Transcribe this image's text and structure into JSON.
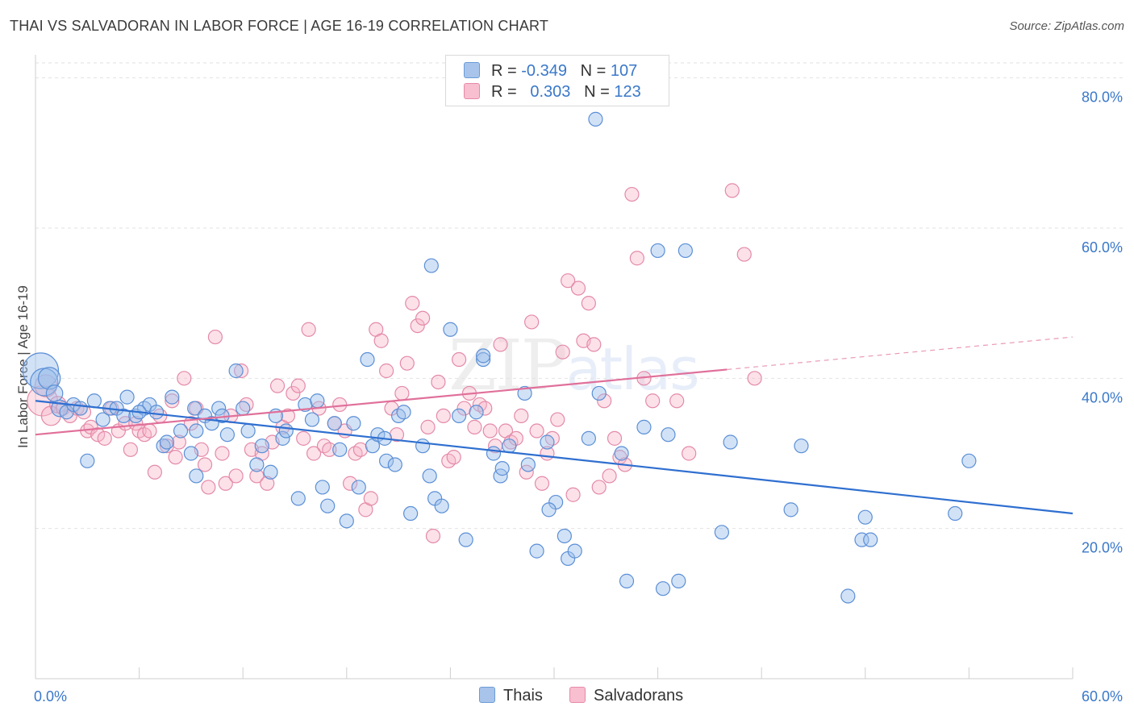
{
  "title": "THAI VS SALVADORAN IN LABOR FORCE | AGE 16-19 CORRELATION CHART",
  "source": "Source: ZipAtlas.com",
  "watermark": {
    "zip": "ZIP",
    "atlas": "atlas"
  },
  "legend": {
    "r_label": "R =",
    "n_label": "N =",
    "rows": [
      {
        "r": "-0.349",
        "n": "107",
        "color": "#a8c4ea",
        "border": "#6b9bd8"
      },
      {
        "r": "0.303",
        "n": "123",
        "color": "#f7bfd0",
        "border": "#e88aa8"
      }
    ]
  },
  "bottom_legend": [
    {
      "label": "Thais",
      "color": "#a8c4ea",
      "border": "#6b9bd8"
    },
    {
      "label": "Salvadorans",
      "color": "#f7bfd0",
      "border": "#e88aa8"
    }
  ],
  "colors": {
    "thai_fill": "rgba(155,190,235,0.45)",
    "thai_stroke": "#5b8fd6",
    "thai_line": "#2f6fd0",
    "salv_fill": "rgba(247,180,200,0.40)",
    "salv_stroke": "#e48aa8",
    "salv_line": "#e0709a",
    "tick_label": "#3a78c9",
    "grid": "#e2e2e2"
  },
  "chart_data": {
    "type": "scatter",
    "title": "THAI VS SALVADORAN IN LABOR FORCE | AGE 16-19 CORRELATION CHART",
    "xlabel": "",
    "ylabel": "In Labor Force | Age 16-19",
    "xlim": [
      0,
      60
    ],
    "ylim": [
      0,
      82
    ],
    "x_tick_labels": [
      "0.0%",
      "60.0%"
    ],
    "y_ticks": [
      20,
      40,
      60,
      80
    ],
    "y_tick_labels": [
      "20.0%",
      "40.0%",
      "60.0%",
      "80.0%"
    ],
    "grid": true,
    "legend_position": "top-center",
    "series": [
      {
        "name": "Thais",
        "r": -0.349,
        "n": 107,
        "trend": {
          "x0": 0,
          "y0": 37.0,
          "x1": 60,
          "y1": 22.0,
          "dashed_from": null
        },
        "points": [
          [
            0.3,
            41,
            2.6
          ],
          [
            0.5,
            39.5,
            2
          ],
          [
            0.8,
            40,
            1.6
          ],
          [
            1.1,
            38,
            1.2
          ],
          [
            1.4,
            36,
            1.2
          ],
          [
            1.8,
            35.5,
            1
          ],
          [
            2.2,
            36.5,
            1
          ],
          [
            2.6,
            36,
            1
          ],
          [
            3.0,
            29,
            1
          ],
          [
            3.4,
            37,
            1
          ],
          [
            3.9,
            34.5,
            1
          ],
          [
            4.3,
            36,
            1
          ],
          [
            4.7,
            36,
            1
          ],
          [
            5.1,
            35,
            1
          ],
          [
            5.3,
            37.5,
            1
          ],
          [
            5.8,
            35,
            1
          ],
          [
            6.3,
            36,
            1
          ],
          [
            6.6,
            36.5,
            1
          ],
          [
            7.0,
            35.5,
            1
          ],
          [
            7.4,
            31,
            1
          ],
          [
            7.6,
            31.5,
            1
          ],
          [
            7.9,
            37.5,
            1
          ],
          [
            8.4,
            33,
            1
          ],
          [
            9.0,
            30,
            1
          ],
          [
            9.2,
            36,
            1
          ],
          [
            9.3,
            27,
            1
          ],
          [
            9.8,
            35,
            1
          ],
          [
            10.2,
            34,
            1
          ],
          [
            10.6,
            36,
            1
          ],
          [
            10.8,
            35,
            1
          ],
          [
            11.1,
            32.5,
            1
          ],
          [
            11.6,
            41,
            1
          ],
          [
            12.0,
            36,
            1
          ],
          [
            12.3,
            33,
            1
          ],
          [
            12.8,
            28.5,
            1
          ],
          [
            13.1,
            31,
            1
          ],
          [
            13.6,
            27.5,
            1
          ],
          [
            13.9,
            35,
            1
          ],
          [
            14.3,
            32,
            1
          ],
          [
            14.5,
            33,
            1
          ],
          [
            15.6,
            36.5,
            1
          ],
          [
            16.0,
            34.5,
            1
          ],
          [
            16.3,
            37,
            1
          ],
          [
            16.6,
            25.5,
            1
          ],
          [
            16.9,
            23,
            1
          ],
          [
            17.3,
            34,
            1
          ],
          [
            17.6,
            30.5,
            1
          ],
          [
            18.0,
            21,
            1
          ],
          [
            18.4,
            34,
            1
          ],
          [
            18.7,
            25.5,
            1
          ],
          [
            19.2,
            42.5,
            1
          ],
          [
            19.5,
            31,
            1
          ],
          [
            19.8,
            32.5,
            1
          ],
          [
            20.3,
            29,
            1
          ],
          [
            20.8,
            28.5,
            1
          ],
          [
            21.0,
            35,
            1
          ],
          [
            21.3,
            35.5,
            1
          ],
          [
            21.7,
            22,
            1
          ],
          [
            22.4,
            31,
            1
          ],
          [
            22.8,
            27,
            1
          ],
          [
            23.1,
            24,
            1
          ],
          [
            23.5,
            23,
            1
          ],
          [
            24.0,
            46.5,
            1
          ],
          [
            24.5,
            35,
            1
          ],
          [
            24.9,
            18.5,
            1
          ],
          [
            25.5,
            35.5,
            1
          ],
          [
            25.9,
            42.5,
            1
          ],
          [
            25.9,
            43,
            1
          ],
          [
            26.5,
            30,
            1
          ],
          [
            26.9,
            27,
            1
          ],
          [
            27.0,
            28,
            1
          ],
          [
            27.4,
            31,
            1
          ],
          [
            28.3,
            38,
            1
          ],
          [
            28.5,
            28.5,
            1
          ],
          [
            29.0,
            17,
            1
          ],
          [
            29.6,
            31.5,
            1
          ],
          [
            30.1,
            23.5,
            1
          ],
          [
            30.6,
            19,
            1
          ],
          [
            30.8,
            16,
            1
          ],
          [
            31.2,
            17,
            1
          ],
          [
            32.0,
            32,
            1
          ],
          [
            32.4,
            74.5,
            1
          ],
          [
            32.6,
            38,
            1
          ],
          [
            33.9,
            30,
            1
          ],
          [
            34.2,
            13,
            1
          ],
          [
            35.2,
            33.5,
            1
          ],
          [
            36.0,
            57,
            1
          ],
          [
            36.3,
            12,
            1
          ],
          [
            36.6,
            32.5,
            1
          ],
          [
            37.2,
            13,
            1
          ],
          [
            37.6,
            57,
            1
          ],
          [
            39.7,
            19.5,
            1
          ],
          [
            40.2,
            31.5,
            1
          ],
          [
            43.7,
            22.5,
            1
          ],
          [
            44.3,
            31,
            1
          ],
          [
            47.0,
            11,
            1
          ],
          [
            47.8,
            18.5,
            1
          ],
          [
            48.3,
            18.5,
            1
          ],
          [
            48.0,
            21.5,
            1
          ],
          [
            53.2,
            22,
            1
          ],
          [
            54.0,
            29,
            1
          ],
          [
            22.9,
            55,
            1
          ],
          [
            29.7,
            22.5,
            1
          ],
          [
            15.2,
            24,
            1
          ],
          [
            9.3,
            33,
            1
          ],
          [
            20.2,
            32,
            1
          ],
          [
            6.0,
            35.5,
            1
          ]
        ]
      },
      {
        "name": "Salvadorans",
        "r": 0.303,
        "n": 123,
        "trend": {
          "x0": 0,
          "y0": 32.5,
          "x1": 60,
          "y1": 45.5,
          "dashed_from": 40
        },
        "points": [
          [
            0.4,
            37,
            2.2
          ],
          [
            0.6,
            39,
            1.6
          ],
          [
            0.9,
            35,
            1.4
          ],
          [
            1.3,
            36.5,
            1.2
          ],
          [
            1.6,
            36,
            1
          ],
          [
            2.0,
            35,
            1
          ],
          [
            2.4,
            36,
            1
          ],
          [
            2.8,
            35.5,
            1
          ],
          [
            3.0,
            33,
            1
          ],
          [
            3.2,
            33.5,
            1
          ],
          [
            3.6,
            32.5,
            1
          ],
          [
            4.0,
            32,
            1
          ],
          [
            4.4,
            36,
            1
          ],
          [
            4.8,
            33,
            1
          ],
          [
            5.2,
            34,
            1
          ],
          [
            5.5,
            30.5,
            1
          ],
          [
            5.8,
            34,
            1
          ],
          [
            6.0,
            33,
            1
          ],
          [
            6.3,
            32.5,
            1
          ],
          [
            6.6,
            33,
            1
          ],
          [
            6.9,
            27.5,
            1
          ],
          [
            7.2,
            35,
            1
          ],
          [
            7.6,
            31,
            1
          ],
          [
            7.9,
            37,
            1
          ],
          [
            8.1,
            29.5,
            1
          ],
          [
            8.3,
            31.5,
            1
          ],
          [
            8.6,
            40,
            1
          ],
          [
            9.0,
            34,
            1
          ],
          [
            9.3,
            36,
            1
          ],
          [
            9.6,
            30.5,
            1
          ],
          [
            9.8,
            28.5,
            1
          ],
          [
            10.0,
            25.5,
            1
          ],
          [
            10.4,
            45.5,
            1
          ],
          [
            10.8,
            30,
            1
          ],
          [
            11.0,
            26,
            1
          ],
          [
            11.3,
            35,
            1
          ],
          [
            11.6,
            27,
            1
          ],
          [
            11.9,
            41,
            1
          ],
          [
            12.2,
            36.5,
            1
          ],
          [
            12.5,
            30.5,
            1
          ],
          [
            12.8,
            27,
            1
          ],
          [
            13.1,
            30,
            1
          ],
          [
            13.4,
            26,
            1
          ],
          [
            13.7,
            31.5,
            1
          ],
          [
            14.0,
            39,
            1
          ],
          [
            14.3,
            33.5,
            1
          ],
          [
            14.6,
            35,
            1
          ],
          [
            14.9,
            38,
            1
          ],
          [
            15.2,
            39,
            1
          ],
          [
            15.5,
            32,
            1
          ],
          [
            15.8,
            46.5,
            1
          ],
          [
            16.1,
            30,
            1
          ],
          [
            16.4,
            36,
            1
          ],
          [
            16.7,
            31,
            1
          ],
          [
            17.0,
            30.5,
            1
          ],
          [
            17.3,
            34,
            1
          ],
          [
            17.6,
            36.5,
            1
          ],
          [
            17.9,
            33,
            1
          ],
          [
            18.2,
            26,
            1
          ],
          [
            18.5,
            30,
            1
          ],
          [
            18.8,
            30.5,
            1
          ],
          [
            19.1,
            22.5,
            1
          ],
          [
            19.4,
            24,
            1
          ],
          [
            19.7,
            46.5,
            1
          ],
          [
            20.0,
            45,
            1
          ],
          [
            20.3,
            41,
            1
          ],
          [
            20.6,
            36,
            1
          ],
          [
            20.9,
            32.5,
            1
          ],
          [
            21.2,
            38,
            1
          ],
          [
            21.5,
            42,
            1
          ],
          [
            21.8,
            50,
            1
          ],
          [
            22.1,
            47,
            1
          ],
          [
            22.4,
            48,
            1
          ],
          [
            22.7,
            33.5,
            1
          ],
          [
            23.0,
            19,
            1
          ],
          [
            23.3,
            39.5,
            1
          ],
          [
            23.6,
            35,
            1
          ],
          [
            23.9,
            29,
            1
          ],
          [
            24.2,
            29.5,
            1
          ],
          [
            24.5,
            42.5,
            1
          ],
          [
            24.8,
            36,
            1
          ],
          [
            25.1,
            38,
            1
          ],
          [
            25.4,
            33.5,
            1
          ],
          [
            25.7,
            36.5,
            1
          ],
          [
            26.0,
            36,
            1
          ],
          [
            26.3,
            33,
            1
          ],
          [
            26.6,
            31,
            1
          ],
          [
            26.9,
            44.5,
            1
          ],
          [
            27.2,
            33,
            1
          ],
          [
            27.5,
            31.5,
            1
          ],
          [
            27.8,
            32,
            1
          ],
          [
            28.1,
            35,
            1
          ],
          [
            28.4,
            27.5,
            1
          ],
          [
            28.7,
            47.5,
            1
          ],
          [
            29.0,
            33,
            1
          ],
          [
            29.3,
            26,
            1
          ],
          [
            29.6,
            30,
            1
          ],
          [
            29.9,
            32,
            1
          ],
          [
            30.2,
            34.5,
            1
          ],
          [
            30.5,
            43.5,
            1
          ],
          [
            30.8,
            53,
            1
          ],
          [
            31.1,
            24.5,
            1
          ],
          [
            31.4,
            52,
            1
          ],
          [
            31.7,
            45,
            1
          ],
          [
            32.0,
            50,
            1
          ],
          [
            32.3,
            44.5,
            1
          ],
          [
            32.6,
            25.5,
            1
          ],
          [
            32.9,
            37,
            1
          ],
          [
            33.2,
            27,
            1
          ],
          [
            33.5,
            32,
            1
          ],
          [
            33.8,
            29.5,
            1
          ],
          [
            34.1,
            28.5,
            1
          ],
          [
            34.5,
            64.5,
            1
          ],
          [
            34.8,
            56,
            1
          ],
          [
            35.2,
            40,
            1
          ],
          [
            37.1,
            37,
            1
          ],
          [
            37.8,
            30,
            1
          ],
          [
            40.3,
            65,
            1
          ],
          [
            41.0,
            56.5,
            1
          ],
          [
            41.6,
            40,
            1
          ],
          [
            35.7,
            37,
            1
          ]
        ]
      }
    ]
  }
}
